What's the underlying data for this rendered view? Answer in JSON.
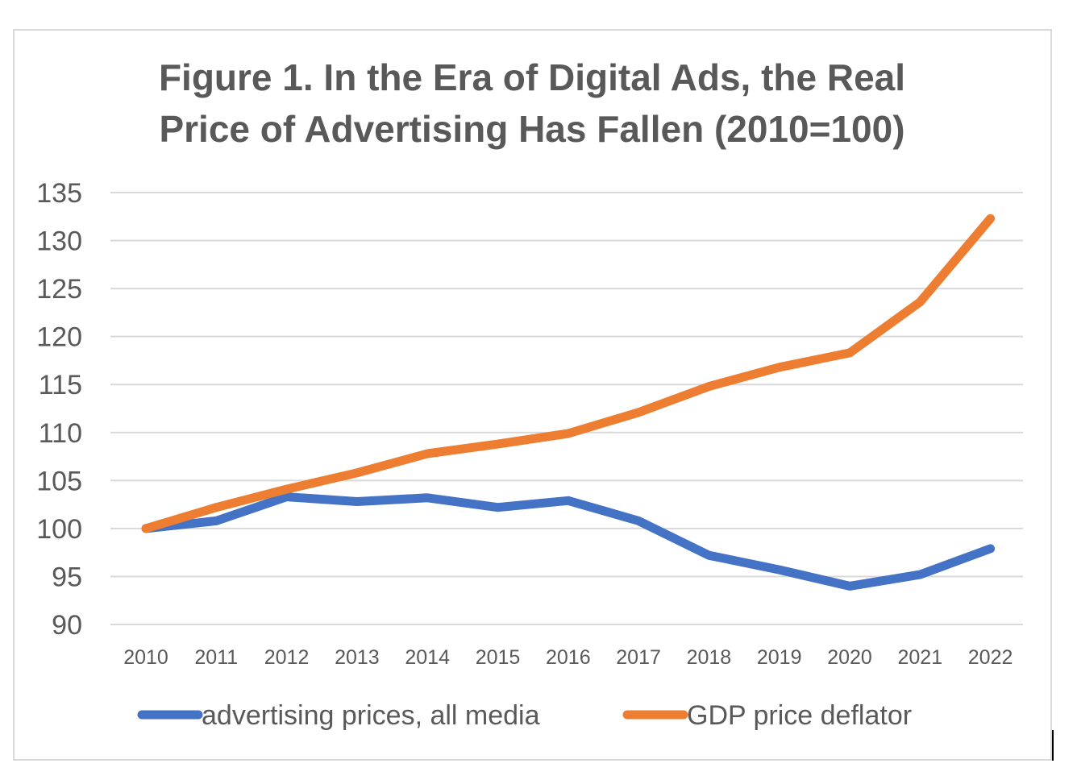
{
  "chart_data": {
    "type": "line",
    "title_lines": [
      "Figure 1. In the Era of Digital Ads, the Real",
      "Price of Advertising Has Fallen  (2010=100)"
    ],
    "x": [
      "2010",
      "2011",
      "2012",
      "2013",
      "2014",
      "2015",
      "2016",
      "2017",
      "2018",
      "2019",
      "2020",
      "2021",
      "2022"
    ],
    "ylim": [
      90,
      135
    ],
    "yticks": [
      90,
      95,
      100,
      105,
      110,
      115,
      120,
      125,
      130,
      135
    ],
    "grid": true,
    "legend_position": "bottom",
    "series": [
      {
        "name": "advertising prices, all media",
        "color": "#4472c4",
        "values": [
          100,
          100.8,
          103.3,
          102.8,
          103.2,
          102.2,
          102.9,
          100.8,
          97.2,
          95.7,
          94.0,
          95.2,
          97.9
        ]
      },
      {
        "name": "GDP price deflator",
        "color": "#ed7d31",
        "values": [
          100,
          102.2,
          104.1,
          105.8,
          107.8,
          108.8,
          109.9,
          112.1,
          114.8,
          116.8,
          118.3,
          123.6,
          132.3
        ]
      }
    ]
  }
}
